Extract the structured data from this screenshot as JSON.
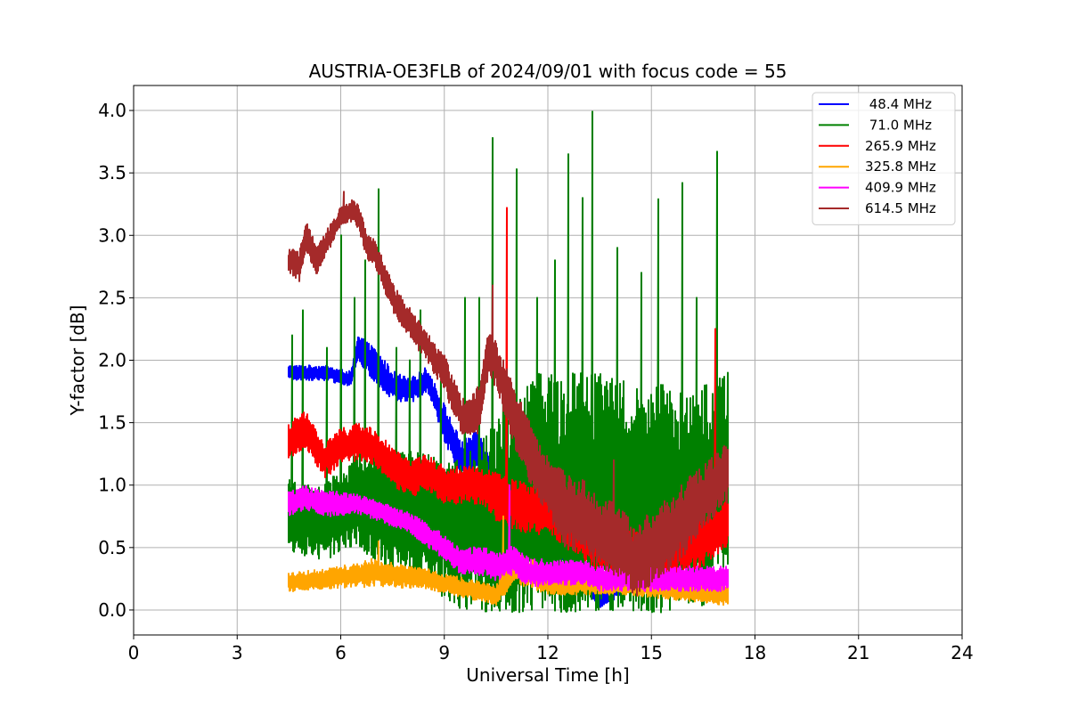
{
  "chart_data": {
    "type": "line",
    "title": "AUSTRIA-OE3FLB of 2024/09/01 with focus code = 55",
    "xlabel": "Universal Time [h]",
    "ylabel": "Y-factor [dB]",
    "xlim": [
      0,
      24
    ],
    "ylim": [
      -0.2,
      4.2
    ],
    "xticks": [
      0,
      3,
      6,
      9,
      12,
      15,
      18,
      21,
      24
    ],
    "xtick_labels": [
      "0",
      "3",
      "6",
      "9",
      "12",
      "15",
      "18",
      "21",
      "24"
    ],
    "yticks": [
      0.0,
      0.5,
      1.0,
      1.5,
      2.0,
      2.5,
      3.0,
      3.5,
      4.0
    ],
    "ytick_labels": [
      "0.0",
      "0.5",
      "1.0",
      "1.5",
      "2.0",
      "2.5",
      "3.0",
      "3.5",
      "4.0"
    ],
    "grid": true,
    "legend_position": "top-right",
    "x_range_of_data": [
      4.5,
      17.2
    ],
    "series": [
      {
        "name": " 48.4 MHz",
        "color": "#0000ff",
        "x": [
          4.5,
          5.5,
          6.3,
          6.5,
          7.0,
          7.5,
          8.0,
          8.5,
          9.0,
          9.5,
          10.0,
          10.5,
          11.0,
          11.5,
          12.0,
          12.5,
          13.0,
          13.5,
          14.0,
          14.5,
          15.0,
          15.5,
          16.0,
          16.5,
          17.0,
          17.2
        ],
        "y": [
          1.9,
          1.9,
          1.85,
          2.1,
          1.95,
          1.8,
          1.75,
          1.85,
          1.5,
          1.2,
          1.3,
          1.0,
          0.8,
          0.65,
          0.55,
          0.45,
          0.35,
          0.1,
          0.2,
          0.25,
          0.3,
          0.35,
          0.6,
          0.8,
          1.0,
          1.0
        ],
        "amplitude": [
          0.06,
          0.06,
          0.06,
          0.1,
          0.15,
          0.12,
          0.1,
          0.1,
          0.15,
          0.15,
          0.15,
          0.15,
          0.15,
          0.12,
          0.12,
          0.12,
          0.12,
          0.1,
          0.1,
          0.1,
          0.12,
          0.12,
          0.15,
          0.15,
          0.15,
          0.15
        ]
      },
      {
        "name": " 71.0 MHz",
        "color": "#008000",
        "x": [
          4.5,
          5.5,
          6.5,
          7.5,
          8.5,
          9.5,
          10.5,
          11.5,
          12.5,
          13.5,
          14.5,
          15.5,
          16.5,
          17.2
        ],
        "y": [
          0.75,
          0.7,
          0.9,
          0.8,
          0.7,
          0.6,
          0.7,
          0.9,
          0.9,
          0.9,
          0.9,
          0.9,
          0.9,
          1.1
        ],
        "amplitude": [
          0.3,
          0.3,
          0.4,
          0.5,
          0.55,
          0.6,
          0.8,
          1.0,
          1.0,
          1.0,
          1.0,
          0.9,
          0.9,
          0.8
        ],
        "spikes": [
          [
            4.6,
            2.2
          ],
          [
            4.9,
            2.4
          ],
          [
            5.6,
            2.1
          ],
          [
            6.0,
            3.0
          ],
          [
            6.4,
            2.5
          ],
          [
            6.7,
            2.8
          ],
          [
            7.1,
            3.37
          ],
          [
            7.6,
            2.1
          ],
          [
            8.0,
            2.0
          ],
          [
            8.3,
            2.4
          ],
          [
            8.9,
            2.0
          ],
          [
            9.6,
            2.5
          ],
          [
            10.0,
            2.5
          ],
          [
            10.4,
            3.78
          ],
          [
            10.7,
            2.0
          ],
          [
            11.1,
            3.53
          ],
          [
            11.7,
            2.5
          ],
          [
            12.2,
            2.8
          ],
          [
            12.6,
            3.65
          ],
          [
            13.0,
            3.3
          ],
          [
            13.3,
            3.99
          ],
          [
            14.0,
            2.9
          ],
          [
            14.7,
            2.7
          ],
          [
            15.2,
            3.29
          ],
          [
            15.9,
            3.42
          ],
          [
            16.3,
            2.5
          ],
          [
            16.9,
            3.67
          ],
          [
            17.2,
            1.9
          ]
        ]
      },
      {
        "name": "265.9 MHz",
        "color": "#ff0000",
        "x": [
          4.5,
          5.0,
          5.5,
          6.0,
          6.5,
          7.0,
          7.5,
          8.0,
          8.5,
          9.0,
          9.5,
          10.0,
          10.5,
          11.0,
          11.5,
          12.0,
          12.5,
          13.0,
          13.5,
          14.0,
          14.5,
          15.0,
          15.5,
          16.0,
          16.5,
          17.0,
          17.2
        ],
        "y": [
          1.35,
          1.45,
          1.2,
          1.3,
          1.35,
          1.3,
          1.15,
          1.05,
          1.1,
          1.0,
          1.0,
          1.0,
          0.9,
          0.85,
          0.8,
          0.8,
          0.7,
          0.6,
          0.5,
          0.5,
          0.45,
          0.45,
          0.45,
          0.5,
          0.55,
          0.65,
          0.7
        ],
        "amplitude": [
          0.15,
          0.15,
          0.15,
          0.15,
          0.15,
          0.15,
          0.15,
          0.15,
          0.15,
          0.15,
          0.15,
          0.15,
          0.2,
          0.2,
          0.2,
          0.2,
          0.2,
          0.2,
          0.2,
          0.2,
          0.2,
          0.2,
          0.2,
          0.2,
          0.2,
          0.2,
          0.2
        ],
        "spikes": [
          [
            10.8,
            3.22
          ],
          [
            16.85,
            2.25
          ]
        ]
      },
      {
        "name": "325.8 MHz",
        "color": "#ffa500",
        "x": [
          4.5,
          5.5,
          6.5,
          7.0,
          7.5,
          8.5,
          9.5,
          10.0,
          10.5,
          11.0,
          11.5,
          12.0,
          13.0,
          14.0,
          15.0,
          16.0,
          17.0,
          17.2
        ],
        "y": [
          0.22,
          0.25,
          0.28,
          0.3,
          0.28,
          0.25,
          0.18,
          0.15,
          0.12,
          0.35,
          0.3,
          0.2,
          0.2,
          0.2,
          0.18,
          0.15,
          0.12,
          0.12
        ],
        "amplitude": [
          0.08,
          0.08,
          0.1,
          0.12,
          0.1,
          0.08,
          0.08,
          0.08,
          0.08,
          0.15,
          0.12,
          0.08,
          0.08,
          0.08,
          0.08,
          0.08,
          0.08,
          0.08
        ],
        "spikes": [
          [
            7.1,
            0.55
          ],
          [
            10.7,
            0.75
          ]
        ]
      },
      {
        "name": "409.9 MHz",
        "color": "#ff00ff",
        "x": [
          4.5,
          5.0,
          5.5,
          6.0,
          6.5,
          7.0,
          7.5,
          8.0,
          8.5,
          9.0,
          9.5,
          10.0,
          10.5,
          11.0,
          11.5,
          12.0,
          12.5,
          13.0,
          13.5,
          14.0,
          14.5,
          15.0,
          15.5,
          16.0,
          16.5,
          17.0,
          17.2
        ],
        "y": [
          0.85,
          0.9,
          0.85,
          0.85,
          0.85,
          0.8,
          0.75,
          0.7,
          0.6,
          0.5,
          0.38,
          0.4,
          0.35,
          0.4,
          0.3,
          0.3,
          0.3,
          0.3,
          0.25,
          0.25,
          0.25,
          0.25,
          0.25,
          0.25,
          0.25,
          0.25,
          0.25
        ],
        "amplitude": [
          0.1,
          0.1,
          0.1,
          0.1,
          0.08,
          0.08,
          0.08,
          0.08,
          0.1,
          0.1,
          0.1,
          0.12,
          0.12,
          0.12,
          0.12,
          0.1,
          0.1,
          0.1,
          0.1,
          0.1,
          0.1,
          0.1,
          0.1,
          0.1,
          0.1,
          0.1,
          0.1
        ],
        "spikes": [
          [
            10.9,
            1.0
          ]
        ]
      },
      {
        "name": "614.5 MHz",
        "color": "#a52a2a",
        "x": [
          4.5,
          4.8,
          5.0,
          5.3,
          5.6,
          6.0,
          6.3,
          6.5,
          6.8,
          7.0,
          7.5,
          8.0,
          8.5,
          9.0,
          9.5,
          10.0,
          10.3,
          10.6,
          11.0,
          11.5,
          12.0,
          12.5,
          13.0,
          13.5,
          14.0,
          14.5,
          15.0,
          15.5,
          16.0,
          16.5,
          17.0,
          17.2
        ],
        "y": [
          2.8,
          2.75,
          3.0,
          2.8,
          2.95,
          3.15,
          3.2,
          3.15,
          2.9,
          2.85,
          2.5,
          2.3,
          2.1,
          1.9,
          1.55,
          1.6,
          2.1,
          1.9,
          1.55,
          1.25,
          1.0,
          0.8,
          0.75,
          0.6,
          0.55,
          0.4,
          0.5,
          0.6,
          0.75,
          0.9,
          1.05,
          1.1
        ],
        "amplitude": [
          0.1,
          0.12,
          0.12,
          0.12,
          0.1,
          0.08,
          0.1,
          0.1,
          0.12,
          0.12,
          0.12,
          0.12,
          0.12,
          0.15,
          0.15,
          0.2,
          0.2,
          0.2,
          0.25,
          0.25,
          0.25,
          0.3,
          0.3,
          0.3,
          0.3,
          0.3,
          0.3,
          0.3,
          0.3,
          0.25,
          0.25,
          0.25
        ],
        "spikes": [
          [
            6.1,
            3.35
          ],
          [
            10.4,
            2.6
          ],
          [
            13.9,
            1.2
          ]
        ]
      }
    ]
  }
}
